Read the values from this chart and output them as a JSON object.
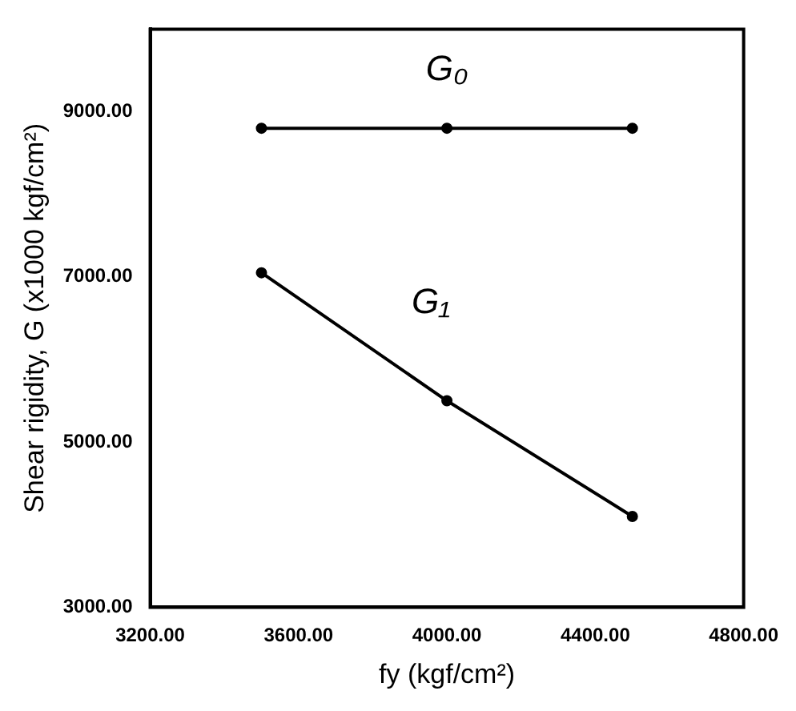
{
  "chart_data": {
    "type": "line",
    "xlabel": "fy (kgf/cm²)",
    "ylabel": "Shear rigidity, G (x1000 kgf/cm²)",
    "x": [
      3500,
      4000,
      4500
    ],
    "series": [
      {
        "name": "G₀",
        "color": "#000000",
        "values": [
          8800,
          8800,
          8800
        ]
      },
      {
        "name": "G₁",
        "color": "#000000",
        "values": [
          7050,
          5500,
          4100
        ]
      }
    ],
    "xlim": [
      3200,
      4800
    ],
    "xticks": [
      {
        "value": 3200,
        "label": "3200.00"
      },
      {
        "value": 3600,
        "label": "3600.00"
      },
      {
        "value": 4000,
        "label": "4000.00"
      },
      {
        "value": 4400,
        "label": "4400.00"
      },
      {
        "value": 4800,
        "label": "4800.00"
      }
    ],
    "ylim": [
      3000,
      10000
    ],
    "yticks": [
      {
        "value": 3000,
        "label": "3000.00"
      },
      {
        "value": 5000,
        "label": "5000.00"
      },
      {
        "value": 7000,
        "label": "7000.00"
      },
      {
        "value": 9000,
        "label": "9000.00"
      }
    ],
    "grid": false,
    "legend": false,
    "marker": "circle",
    "line_style": "solid"
  }
}
